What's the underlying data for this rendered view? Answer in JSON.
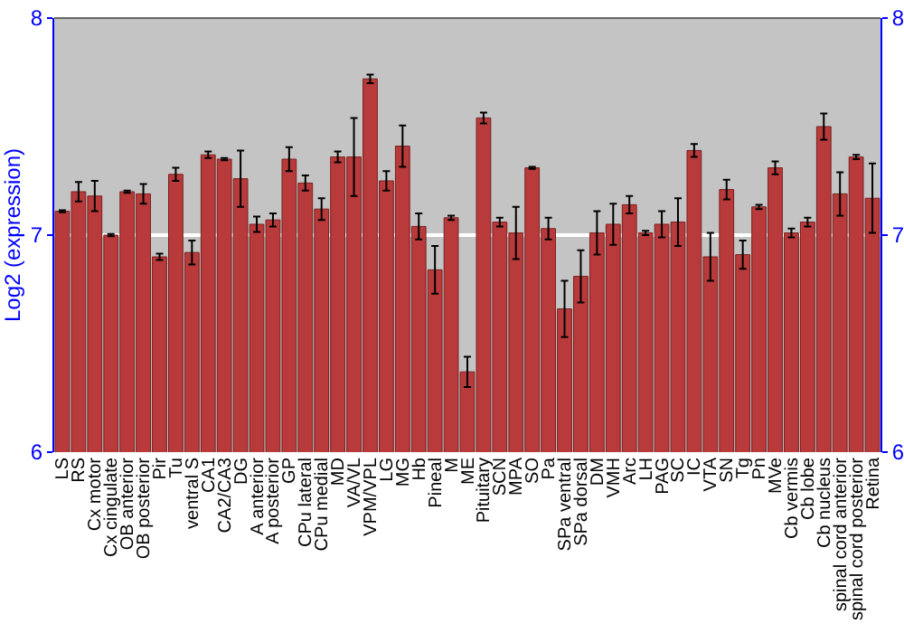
{
  "chart_data": {
    "type": "bar",
    "ylabel": "Log2 (expression)",
    "categories": [
      "LS",
      "RS",
      "Cx motor",
      "Cx cingulate",
      "OB anterior",
      "OB posterior",
      "Pir",
      "Tu",
      "ventral S",
      "CA1",
      "CA2/CA3",
      "DG",
      "A anterior",
      "A posterior",
      "GP",
      "CPu lateral",
      "CPu medial",
      "MD",
      "VA/VL",
      "VPM/VPL",
      "LG",
      "MG",
      "Hb",
      "Pineal",
      "M",
      "ME",
      "Pituitary",
      "SCN",
      "MPA",
      "SO",
      "Pa",
      "SPa ventral",
      "SPa dorsal",
      "DM",
      "VMH",
      "Arc",
      "LH",
      "PAG",
      "SC",
      "IC",
      "VTA",
      "SN",
      "Tg",
      "Pn",
      "MVe",
      "Cb vermis",
      "Cb lobe",
      "Cb nucleus",
      "spinal cord anterior",
      "spinal cord posterior",
      "Retina"
    ],
    "values": [
      7.11,
      7.2,
      7.18,
      7.0,
      7.2,
      7.19,
      6.9,
      7.28,
      6.92,
      7.37,
      7.35,
      7.26,
      7.05,
      7.07,
      7.35,
      7.24,
      7.12,
      7.36,
      7.36,
      7.72,
      7.25,
      7.41,
      7.04,
      6.84,
      7.08,
      6.37,
      7.54,
      7.06,
      7.01,
      7.31,
      7.03,
      6.66,
      6.81,
      7.01,
      7.05,
      7.14,
      7.01,
      7.05,
      7.06,
      7.39,
      6.9,
      7.21,
      6.91,
      7.13,
      7.31,
      7.01,
      7.06,
      7.5,
      7.19,
      7.36,
      7.17
    ],
    "errors": [
      0.005,
      0.045,
      0.07,
      0.005,
      0.005,
      0.045,
      0.015,
      0.03,
      0.055,
      0.015,
      0.005,
      0.13,
      0.035,
      0.03,
      0.055,
      0.035,
      0.05,
      0.025,
      0.18,
      0.02,
      0.045,
      0.095,
      0.06,
      0.11,
      0.01,
      0.07,
      0.025,
      0.02,
      0.12,
      0.005,
      0.05,
      0.13,
      0.12,
      0.1,
      0.095,
      0.04,
      0.01,
      0.06,
      0.11,
      0.03,
      0.11,
      0.045,
      0.065,
      0.01,
      0.03,
      0.02,
      0.02,
      0.06,
      0.1,
      0.01,
      0.16
    ],
    "color": "#b83a3a",
    "ylim": [
      6,
      8
    ],
    "yticks": [
      6,
      7,
      8
    ],
    "y2lim": [
      6,
      8
    ],
    "y2ticks": [
      6,
      7,
      8
    ],
    "grid": "y",
    "legend": false
  }
}
